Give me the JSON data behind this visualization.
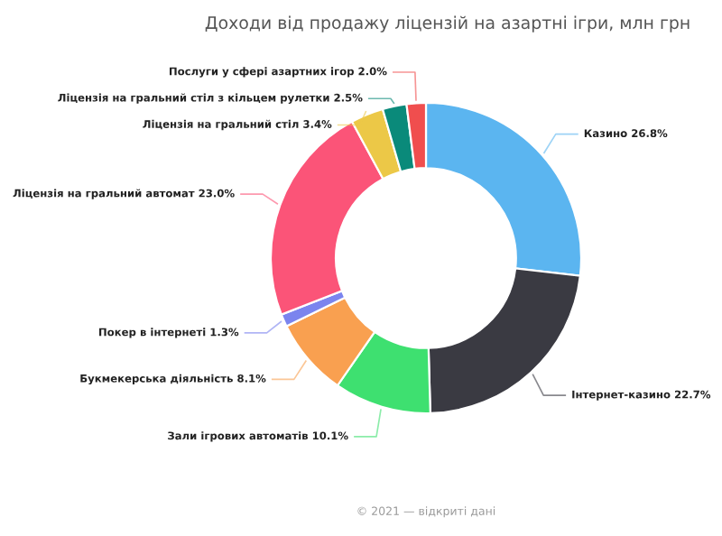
{
  "chart_data": {
    "type": "donut",
    "title": "Доходи від продажу ліцензій на азартні ігри, млн грн",
    "categories": [
      "Казино",
      "Інтернет-казино",
      "Зали ігрових автоматів",
      "Букмекерська діяльність",
      "Покер в інтернеті",
      "Ліцензія на гральний автомат",
      "Ліцензія на гральний стіл",
      "Ліцензія на гральний стіл з кільцем рулетки",
      "Послуги у сфері азартних ігор"
    ],
    "values": [
      26.8,
      22.7,
      10.1,
      8.1,
      1.3,
      23.0,
      3.4,
      2.5,
      2.0
    ],
    "value_labels": [
      "26.8%",
      "22.7%",
      "10.1%",
      "8.1%",
      "1.3%",
      "23.0%",
      "3.4%",
      "2.5%",
      "2.0%"
    ],
    "colors": [
      "#5bb5f0",
      "#3a3a42",
      "#3ee070",
      "#f9a050",
      "#7b84ee",
      "#fb5478",
      "#ecc847",
      "#0a8a7a",
      "#f04e4e"
    ],
    "annotations": [
      "© 2021 — відкриті дані"
    ],
    "legend": false
  }
}
